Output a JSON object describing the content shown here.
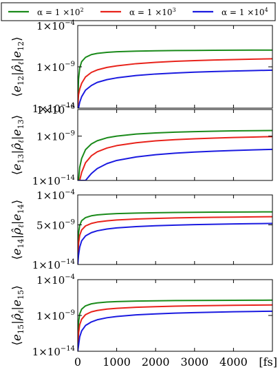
{
  "chart_data": {
    "type": "line",
    "legend": {
      "placement": "top",
      "entries": [
        {
          "label_prefix": "α = 1 ×10",
          "exponent": "2",
          "color": "#1a8a1a"
        },
        {
          "label_prefix": "α = 1 ×10",
          "exponent": "3",
          "color": "#e8221a"
        },
        {
          "label_prefix": "α = 1 ×10",
          "exponent": "4",
          "color": "#1a1ae0"
        }
      ]
    },
    "x_unit_label": "[fs]",
    "xlim": [
      0,
      5000
    ],
    "x_ticks": [
      {
        "value": 0,
        "label": "0"
      },
      {
        "value": 1000,
        "label": "1000"
      },
      {
        "value": 2000,
        "label": "2000"
      },
      {
        "value": 3000,
        "label": "3000"
      },
      {
        "value": 4000,
        "label": "4000"
      }
    ],
    "x_samples": [
      0,
      20,
      50,
      100,
      200,
      350,
      500,
      750,
      1000,
      1500,
      2000,
      2500,
      3000,
      3500,
      4000,
      4500,
      5000
    ],
    "panels": [
      {
        "ylabel": {
          "ket": "e",
          "ket_sub": "12",
          "op": "ρ̂",
          "op_sub": "ℓ",
          "bra": "e",
          "bra_sub": "12"
        },
        "yscale": "log",
        "ylim": [
          1e-14,
          0.0001
        ],
        "y_ticks": [
          {
            "value": 0.0001,
            "mant": "1×10",
            "exp": "−4"
          },
          {
            "value": 1e-09,
            "mant": "1×10",
            "exp": "−9"
          },
          {
            "value": 1e-14,
            "mant": "1×10",
            "exp": "−14"
          }
        ],
        "series": [
          {
            "color": "#1a8a1a",
            "y": [
              1e-14,
              3e-11,
              7e-10,
              4.2e-09,
              1.4e-08,
              3e-08,
              4.2e-08,
              5.6e-08,
              6.6e-08,
              7.8e-08,
              8.6e-08,
              9.2e-08,
              9.6e-08,
              9.9e-08,
              1.02e-07,
              1.04e-07,
              1.05e-07
            ]
          },
          {
            "color": "#e8221a",
            "y": [
              1e-14,
              4e-13,
              2e-12,
              1e-11,
              6e-11,
              2.1e-10,
              4.2e-10,
              8.5e-10,
              1.3e-09,
              2.4e-09,
              3.5e-09,
              4.6e-09,
              5.6e-09,
              6.6e-09,
              7.5e-09,
              8.4e-09,
              9.3e-09
            ]
          },
          {
            "color": "#1a1ae0",
            "y": [
              1e-14,
              1e-14,
              5e-14,
              2.4e-13,
              1.5e-12,
              5.5e-12,
              1.3e-11,
              2.8e-11,
              4.6e-11,
              8.8e-11,
              1.35e-10,
              1.8e-10,
              2.25e-10,
              2.7e-10,
              3.1e-10,
              3.5e-10,
              3.9e-10
            ]
          }
        ]
      },
      {
        "ylabel": {
          "ket": "e",
          "ket_sub": "13",
          "op": "ρ̂",
          "op_sub": "ℓ",
          "bra": "e",
          "bra_sub": "13"
        },
        "yscale": "log",
        "ylim": [
          1e-14,
          1e-06
        ],
        "y_ticks": [
          {
            "value": 1e-06,
            "mant": "1×10",
            "exp": "−6"
          },
          {
            "value": 1e-09,
            "mant": "1×10",
            "exp": "−9"
          },
          {
            "value": 1e-14,
            "mant": "1×10",
            "exp": "−14"
          }
        ],
        "series": [
          {
            "color": "#1a8a1a",
            "y": [
              1e-14,
              1e-14,
              3e-13,
              3e-12,
              3e-11,
              1.3e-10,
              3e-10,
              6.5e-10,
              1e-09,
              1.7e-09,
              2.3e-09,
              2.8e-09,
              3.2e-09,
              3.6e-09,
              3.9e-09,
              4.1e-09,
              4.3e-09
            ]
          },
          {
            "color": "#e8221a",
            "y": [
              1e-14,
              1e-14,
              1e-14,
              8e-14,
              1e-12,
              6e-12,
              1.7e-11,
              4.5e-11,
              8.5e-11,
              1.8e-10,
              2.9e-10,
              4e-10,
              5e-10,
              6e-10,
              7e-10,
              7.9e-10,
              8.7e-10
            ]
          },
          {
            "color": "#1a1ae0",
            "y": [
              1e-14,
              1e-14,
              1e-14,
              1e-14,
              1e-14,
              6e-14,
              2.2e-13,
              8e-13,
              1.8e-12,
              4.5e-12,
              8e-12,
              1.2e-11,
              1.6e-11,
              2e-11,
              2.4e-11,
              2.8e-11,
              3.2e-11
            ]
          }
        ]
      },
      {
        "ylabel": {
          "ket": "e",
          "ket_sub": "14",
          "op": "ρ̂",
          "op_sub": "ℓ",
          "bra": "e",
          "bra_sub": "14"
        },
        "yscale": "log",
        "ylim": [
          1e-14,
          0.0001
        ],
        "y_ticks": [
          {
            "value": 0.0001,
            "mant": "1×10",
            "exp": "−4"
          },
          {
            "value": 5e-09,
            "mant": "5×10",
            "exp": "−9"
          },
          {
            "value": 1e-14,
            "mant": "1×10",
            "exp": "−14"
          }
        ],
        "series": [
          {
            "color": "#1a8a1a",
            "y": [
              1e-14,
              3e-10,
              4e-09,
              2e-08,
              5.5e-08,
              1e-07,
              1.35e-07,
              1.75e-07,
              2.05e-07,
              2.45e-07,
              2.75e-07,
              2.95e-07,
              3.15e-07,
              3.3e-07,
              3.45e-07,
              3.55e-07,
              3.65e-07
            ]
          },
          {
            "color": "#e8221a",
            "y": [
              1e-14,
              1e-11,
              1.5e-10,
              9e-10,
              3.5e-09,
              8e-09,
              1.25e-08,
              1.9e-08,
              2.5e-08,
              3.4e-08,
              4.2e-08,
              4.9e-08,
              5.5e-08,
              6e-08,
              6.5e-08,
              7e-08,
              7.4e-08
            ]
          },
          {
            "color": "#1a1ae0",
            "y": [
              1e-14,
              2e-13,
              3e-12,
              2.5e-11,
              1.3e-10,
              3.8e-10,
              7e-10,
              1.25e-09,
              1.8e-09,
              2.8e-09,
              3.7e-09,
              4.5e-09,
              5.3e-09,
              6e-09,
              6.7e-09,
              7.3e-09,
              7.9e-09
            ]
          }
        ]
      },
      {
        "ylabel": {
          "ket": "e",
          "ket_sub": "15",
          "op": "ρ̂",
          "op_sub": "ℓ",
          "bra": "e",
          "bra_sub": "15"
        },
        "yscale": "log",
        "ylim": [
          1e-14,
          0.0001
        ],
        "y_ticks": [
          {
            "value": 0.0001,
            "mant": "1×10",
            "exp": "−4"
          },
          {
            "value": 1e-09,
            "mant": "1×10",
            "exp": "−9"
          },
          {
            "value": 1e-14,
            "mant": "1×10",
            "exp": "−14"
          }
        ],
        "series": [
          {
            "color": "#1a8a1a",
            "y": [
              1e-14,
              1e-10,
              1.6e-09,
              7.5e-09,
              2.2e-08,
              4.2e-08,
              5.7e-08,
              7.5e-08,
              8.7e-08,
              1.02e-07,
              1.12e-07,
              1.19e-07,
              1.24e-07,
              1.28e-07,
              1.31e-07,
              1.34e-07,
              1.36e-07
            ]
          },
          {
            "color": "#e8221a",
            "y": [
              1e-14,
              3e-12,
              5e-11,
              3e-10,
              1.3e-09,
              3.2e-09,
              5e-09,
              7.8e-09,
              1e-08,
              1.4e-08,
              1.7e-08,
              2e-08,
              2.2e-08,
              2.4e-08,
              2.6e-08,
              2.75e-08,
              2.9e-08
            ]
          },
          {
            "color": "#1a1ae0",
            "y": [
              1e-14,
              6e-14,
              1e-12,
              7e-12,
              4e-11,
              1.25e-10,
              2.5e-10,
              4.8e-10,
              7.2e-10,
              1.2e-09,
              1.65e-09,
              2.1e-09,
              2.5e-09,
              2.9e-09,
              3.25e-09,
              3.6e-09,
              3.9e-09
            ]
          }
        ]
      }
    ]
  }
}
